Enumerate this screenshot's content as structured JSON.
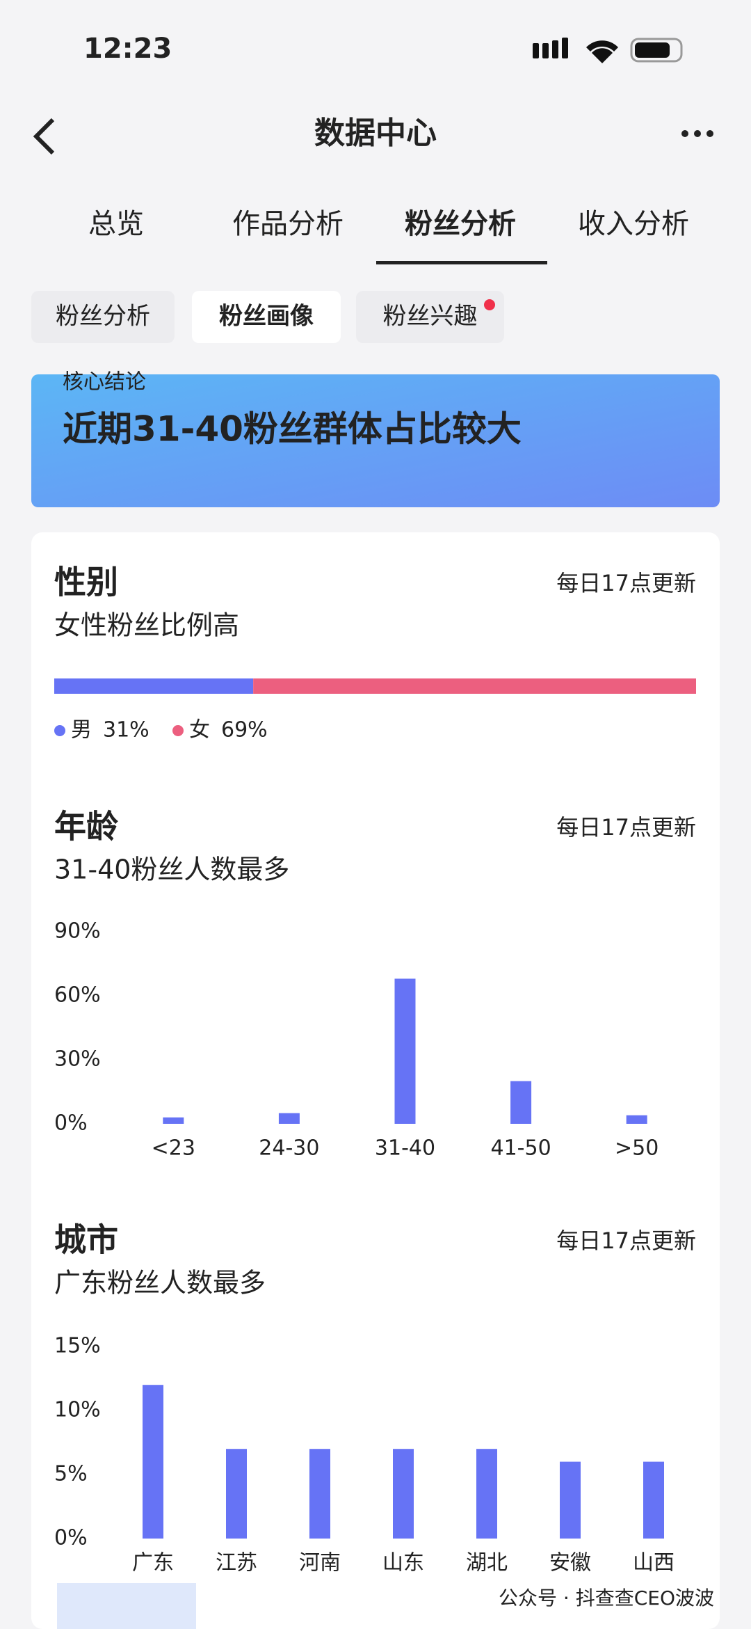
{
  "status_bar": {
    "time": "12:23"
  },
  "header": {
    "title": "数据中心"
  },
  "tabs": [
    "总览",
    "作品分析",
    "粉丝分析",
    "收入分析"
  ],
  "sub_tabs": [
    "粉丝分析",
    "粉丝画像",
    "粉丝兴趣"
  ],
  "banner": {
    "label": "核心结论",
    "text": "近期31-40粉丝群体占比较大"
  },
  "gender": {
    "title": "性别",
    "update": "每日17点更新",
    "subtitle": "女性粉丝比例高",
    "series": [
      {
        "name": "男",
        "value": 31,
        "value_label": "31%",
        "color": "#6673f5"
      },
      {
        "name": "女",
        "value": 69,
        "value_label": "69%",
        "color": "#ec5f7f"
      }
    ]
  },
  "age": {
    "title": "年龄",
    "update": "每日17点更新",
    "subtitle": "31-40粉丝人数最多",
    "type": "bar",
    "color": "#6673f5",
    "categories": [
      "<23",
      "24-30",
      "31-40",
      "41-50",
      ">50"
    ],
    "values": [
      3,
      5,
      68,
      20,
      4
    ],
    "ylim": [
      0,
      90
    ],
    "yticks": [
      {
        "value": 0,
        "label": "0%"
      },
      {
        "value": 30,
        "label": "30%"
      },
      {
        "value": 60,
        "label": "60%"
      },
      {
        "value": 90,
        "label": "90%"
      }
    ]
  },
  "city": {
    "title": "城市",
    "update": "每日17点更新",
    "subtitle": "广东粉丝人数最多",
    "type": "bar",
    "color": "#6673f5",
    "categories": [
      "广东",
      "江苏",
      "河南",
      "山东",
      "湖北",
      "安徽",
      "山西"
    ],
    "values": [
      12,
      7,
      7,
      7,
      7,
      6,
      6
    ],
    "ylim": [
      0,
      15
    ],
    "yticks": [
      {
        "value": 0,
        "label": "0%"
      },
      {
        "value": 5,
        "label": "5%"
      },
      {
        "value": 10,
        "label": "10%"
      },
      {
        "value": 15,
        "label": "15%"
      }
    ]
  },
  "watermark": "公众号 · 抖查查CEO波波"
}
